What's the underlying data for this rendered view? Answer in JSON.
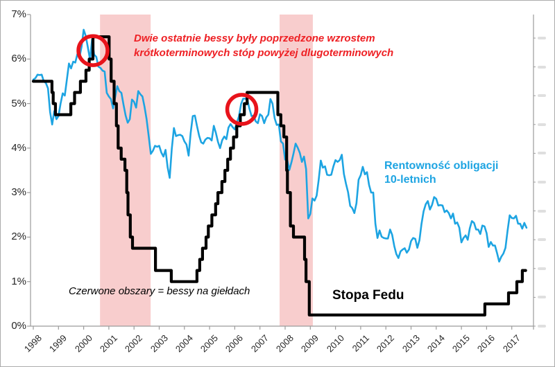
{
  "chart_data": {
    "type": "line",
    "title": "",
    "xlabel": "",
    "ylabel": "",
    "x_ticks": [
      "1998",
      "1999",
      "2000",
      "2001",
      "2002",
      "2003",
      "2004",
      "2005",
      "2006",
      "2007",
      "2008",
      "2009",
      "2010",
      "2011",
      "2012",
      "2013",
      "2014",
      "2015",
      "2016",
      "2017"
    ],
    "y_ticks_top_down": [
      "7%",
      "6%",
      "5%",
      "4%",
      "3%",
      "2%",
      "1%",
      "0%"
    ],
    "y_range_pct": [
      0,
      7
    ],
    "x_range_years": [
      1998,
      2017.9
    ],
    "grid": "off",
    "legend_position": "inline-labels",
    "series": [
      {
        "name": "Stopa Fedu",
        "color": "#000000",
        "style": "step",
        "points": [
          [
            1998.0,
            5.5
          ],
          [
            1998.74,
            5.25
          ],
          [
            1998.79,
            5.0
          ],
          [
            1998.88,
            4.75
          ],
          [
            1999.49,
            5.0
          ],
          [
            1999.64,
            5.25
          ],
          [
            1999.87,
            5.5
          ],
          [
            2000.09,
            5.75
          ],
          [
            2000.22,
            6.0
          ],
          [
            2000.37,
            6.5
          ],
          [
            2001.01,
            6.0
          ],
          [
            2001.09,
            5.5
          ],
          [
            2001.21,
            5.0
          ],
          [
            2001.3,
            4.5
          ],
          [
            2001.37,
            4.0
          ],
          [
            2001.49,
            3.75
          ],
          [
            2001.64,
            3.5
          ],
          [
            2001.71,
            3.0
          ],
          [
            2001.76,
            2.5
          ],
          [
            2001.85,
            2.0
          ],
          [
            2001.94,
            1.75
          ],
          [
            2002.85,
            1.25
          ],
          [
            2003.48,
            1.0
          ],
          [
            2004.5,
            1.25
          ],
          [
            2004.61,
            1.5
          ],
          [
            2004.72,
            1.75
          ],
          [
            2004.86,
            2.0
          ],
          [
            2004.95,
            2.25
          ],
          [
            2005.09,
            2.5
          ],
          [
            2005.24,
            2.75
          ],
          [
            2005.33,
            3.0
          ],
          [
            2005.49,
            3.25
          ],
          [
            2005.61,
            3.5
          ],
          [
            2005.72,
            3.75
          ],
          [
            2005.83,
            4.0
          ],
          [
            2005.95,
            4.25
          ],
          [
            2006.08,
            4.5
          ],
          [
            2006.22,
            4.75
          ],
          [
            2006.38,
            5.0
          ],
          [
            2006.49,
            5.25
          ],
          [
            2007.71,
            4.75
          ],
          [
            2007.83,
            4.5
          ],
          [
            2007.95,
            4.25
          ],
          [
            2008.06,
            3.5
          ],
          [
            2008.09,
            3.0
          ],
          [
            2008.21,
            2.25
          ],
          [
            2008.33,
            2.0
          ],
          [
            2008.77,
            1.5
          ],
          [
            2008.83,
            1.0
          ],
          [
            2008.96,
            0.25
          ],
          [
            2015.93,
            0.5
          ],
          [
            2016.87,
            0.75
          ],
          [
            2017.2,
            1.0
          ],
          [
            2017.42,
            1.25
          ],
          [
            2017.55,
            1.25
          ]
        ]
      },
      {
        "name": "Rentowność obligacji 10-letnich",
        "color": "#1da4e2",
        "style": "line",
        "start_year": 1998,
        "interval_years": 0.08333,
        "values": [
          5.54,
          5.57,
          5.65,
          5.64,
          5.65,
          5.5,
          5.46,
          5.34,
          4.81,
          4.53,
          4.83,
          4.65,
          4.72,
          5.0,
          5.23,
          5.18,
          5.54,
          5.9,
          5.79,
          5.94,
          5.92,
          6.11,
          6.03,
          6.28,
          6.66,
          6.52,
          6.26,
          5.99,
          6.44,
          6.1,
          6.05,
          5.83,
          5.8,
          5.74,
          5.72,
          5.24,
          5.16,
          5.1,
          4.89,
          5.14,
          5.39,
          5.28,
          5.24,
          4.97,
          4.73,
          4.57,
          4.65,
          5.09,
          5.04,
          4.91,
          5.28,
          5.21,
          5.16,
          4.93,
          4.65,
          4.26,
          3.87,
          3.94,
          4.05,
          4.03,
          4.05,
          3.9,
          3.81,
          3.96,
          3.57,
          3.33,
          3.98,
          4.45,
          4.27,
          4.29,
          4.3,
          4.27,
          4.15,
          4.08,
          3.83,
          4.35,
          4.72,
          4.73,
          4.5,
          4.28,
          4.13,
          4.1,
          4.19,
          4.23,
          4.22,
          4.17,
          4.5,
          4.34,
          4.14,
          4.0,
          4.18,
          4.26,
          4.2,
          4.46,
          4.54,
          4.47,
          4.42,
          4.57,
          4.72,
          4.99,
          5.11,
          5.11,
          5.09,
          4.88,
          4.72,
          4.73,
          4.6,
          4.56,
          4.76,
          4.72,
          4.56,
          4.69,
          4.75,
          5.1,
          5.0,
          4.67,
          4.52,
          4.53,
          4.15,
          4.1,
          3.74,
          3.74,
          3.51,
          3.68,
          3.88,
          4.1,
          4.01,
          3.89,
          3.69,
          3.81,
          3.53,
          2.42,
          2.52,
          2.87,
          2.82,
          2.93,
          3.29,
          3.72,
          3.56,
          3.59,
          3.4,
          3.39,
          3.4,
          3.59,
          3.73,
          3.69,
          3.73,
          3.85,
          3.42,
          3.2,
          3.01,
          2.7,
          2.65,
          2.54,
          2.76,
          3.29,
          3.39,
          3.58,
          3.41,
          3.46,
          3.17,
          3.0,
          3.0,
          2.3,
          1.98,
          2.15,
          2.01,
          1.98,
          1.97,
          1.97,
          2.17,
          2.05,
          1.8,
          1.62,
          1.53,
          1.68,
          1.72,
          1.75,
          1.65,
          1.72,
          1.91,
          1.98,
          1.96,
          1.76,
          1.93,
          2.3,
          2.58,
          2.74,
          2.81,
          2.62,
          2.72,
          2.9,
          2.86,
          2.71,
          2.72,
          2.71,
          2.56,
          2.6,
          2.54,
          2.42,
          2.53,
          2.3,
          2.33,
          2.21,
          1.88,
          1.98,
          2.04,
          1.94,
          2.2,
          2.36,
          2.32,
          2.17,
          2.17,
          2.07,
          2.26,
          2.24,
          2.09,
          1.78,
          1.89,
          1.81,
          1.81,
          1.64,
          1.45,
          1.56,
          1.63,
          1.76,
          2.14,
          2.49,
          2.43,
          2.42,
          2.48,
          2.3,
          2.3,
          2.19,
          2.32,
          2.21
        ]
      }
    ],
    "bear_market_bands": {
      "color": "#f8cdcd",
      "ranges_years": [
        [
          2000.65,
          2002.66
        ],
        [
          2007.78,
          2009.1
        ]
      ]
    },
    "highlight_circles": {
      "color": "#e8131b",
      "stroke_width": 5.5,
      "items": [
        {
          "year": 2000.37,
          "pct": 6.19,
          "r": 21
        },
        {
          "year": 2006.28,
          "pct": 4.87,
          "r": 21
        }
      ]
    },
    "annotations": {
      "red_note_line1": "Dwie ostatnie bessy były poprzedzone wzrostem",
      "red_note_line2": "krótkoterminowych stóp powyżej dlugoterminowych",
      "red_note_color": "#ee2024",
      "bond_label_line1": "Rentowność obligacji",
      "bond_label_line2": "10-letnich",
      "bond_label_color": "#1da4e2",
      "fed_label": "Stopa Fedu",
      "legend_note": "Czerwone obszary = bessy na giełdach"
    },
    "right_axis": {
      "faint_tick_count": 11
    },
    "axis_color": "#9b9b9b"
  }
}
